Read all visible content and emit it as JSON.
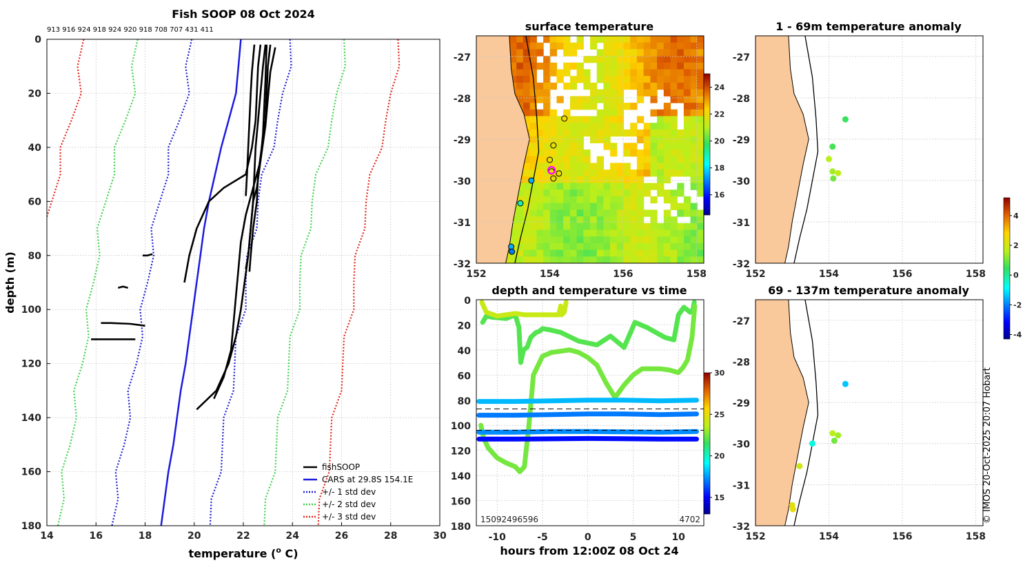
{
  "colors": {
    "land": "#f9c99b",
    "cars": "#1a1adf",
    "soop": "#000000",
    "std1": "#1d1dd1",
    "std2": "#3fd14d",
    "std3": "#e0281c",
    "marker_magenta": "#ff00ff"
  },
  "chart_data": [
    {
      "type": "line",
      "title": "Fish SOOP 08 Oct 2024",
      "profile_ids": "913 916 924 918 924 920 918 708 707 431 411",
      "xlabel": "temperature (",
      "xlabel_sup": "o",
      "xlabel_tail": " C)",
      "ylabel": "depth (m)",
      "xlim": [
        14,
        30
      ],
      "ylim": [
        0,
        180
      ],
      "xticks": [
        "14",
        "16",
        "18",
        "20",
        "22",
        "24",
        "26",
        "28",
        "30"
      ],
      "yticks": [
        "0",
        "20",
        "40",
        "60",
        "80",
        "100",
        "120",
        "140",
        "160",
        "180"
      ],
      "legend": [
        {
          "label": "fishSOOP",
          "style": "solid",
          "color": "#000000"
        },
        {
          "label": "CARS at 29.8S 154.1E",
          "style": "solid",
          "color": "#1a1adf"
        },
        {
          "label": "+/- 1 std dev",
          "style": "dotted",
          "color": "#1d1dd1"
        },
        {
          "label": "+/- 2 std dev",
          "style": "dotted",
          "color": "#3fd14d"
        },
        {
          "label": "+/- 3 std dev",
          "style": "dotted",
          "color": "#e0281c"
        }
      ],
      "cars": {
        "depth": [
          0,
          10,
          20,
          30,
          40,
          50,
          60,
          70,
          80,
          90,
          100,
          110,
          120,
          130,
          140,
          150,
          160,
          170,
          180
        ],
        "temp": [
          21.9,
          21.8,
          21.7,
          21.4,
          21.1,
          20.85,
          20.6,
          20.4,
          20.25,
          20.1,
          19.95,
          19.8,
          19.65,
          19.45,
          19.3,
          19.15,
          18.95,
          18.8,
          18.65
        ]
      },
      "std1": {
        "offset": 2.0
      },
      "std2": {
        "offset": 4.2
      },
      "std3": {
        "offset": 6.4
      },
      "soop": [
        {
          "depth": [
            2,
            10,
            20,
            30,
            40,
            50,
            55,
            60,
            70,
            80,
            90
          ],
          "temp": [
            22.7,
            22.6,
            22.55,
            22.5,
            22.35,
            22.1,
            21.2,
            20.6,
            20.1,
            19.8,
            19.6
          ]
        },
        {
          "depth": [
            2,
            10,
            20,
            30,
            40,
            50,
            60,
            70,
            80,
            85
          ],
          "temp": [
            22.9,
            22.8,
            22.7,
            22.6,
            22.5,
            22.45,
            22.4,
            22.3,
            22.2,
            22.1
          ]
        },
        {
          "depth": [
            2,
            10,
            20,
            30,
            40,
            50,
            60,
            70,
            80,
            86
          ],
          "temp": [
            23.1,
            23.0,
            22.95,
            22.9,
            22.75,
            22.6,
            22.55,
            22.4,
            22.3,
            22.25
          ]
        },
        {
          "depth": [
            3,
            12,
            22,
            32,
            45,
            55,
            65,
            75,
            85,
            95,
            105,
            115,
            125,
            133
          ],
          "temp": [
            23.3,
            23.1,
            23.0,
            22.9,
            22.7,
            22.4,
            22.1,
            21.9,
            21.8,
            21.7,
            21.6,
            21.5,
            21.2,
            20.8
          ]
        },
        {
          "depth": [
            2,
            15,
            25,
            35,
            45,
            55,
            60,
            70,
            80,
            90,
            100,
            110,
            120,
            130,
            137
          ],
          "temp": [
            22.95,
            22.9,
            22.85,
            22.8,
            22.7,
            22.55,
            22.4,
            22.3,
            22.2,
            22.05,
            21.9,
            21.7,
            21.4,
            20.9,
            20.1
          ]
        },
        {
          "depth": [
            2,
            12,
            20,
            30,
            40,
            50,
            58
          ],
          "temp": [
            22.45,
            22.35,
            22.3,
            22.25,
            22.2,
            22.15,
            22.1
          ]
        },
        {
          "depth": [
            80,
            80,
            79.5
          ],
          "temp": [
            17.9,
            18.1,
            18.3
          ]
        },
        {
          "depth": [
            92,
            91.5,
            92
          ],
          "temp": [
            16.9,
            17.1,
            17.3
          ]
        },
        {
          "depth": [
            105,
            105,
            105.3,
            106
          ],
          "temp": [
            16.2,
            16.6,
            17.4,
            18.0
          ]
        },
        {
          "depth": [
            111,
            111,
            111,
            111
          ],
          "temp": [
            15.8,
            16.4,
            17.0,
            17.6
          ]
        }
      ]
    },
    {
      "type": "heatmap",
      "title": "surface temperature",
      "xlim": [
        152,
        158.2
      ],
      "ylim": [
        -32,
        -26.5
      ],
      "xticks": [
        "152",
        "154",
        "156",
        "158"
      ],
      "yticks": [
        "-27",
        "-28",
        "-29",
        "-30",
        "-31",
        "-32"
      ],
      "colorbar": {
        "min": 14.5,
        "max": 25,
        "ticks": [
          "16",
          "18",
          "20",
          "22",
          "24"
        ]
      },
      "coast": [
        [
          152.9,
          -26.5
        ],
        [
          152.95,
          -27.3
        ],
        [
          153.05,
          -27.9
        ],
        [
          153.3,
          -28.4
        ],
        [
          153.45,
          -29.0
        ],
        [
          153.3,
          -29.6
        ],
        [
          153.15,
          -30.3
        ],
        [
          153.0,
          -31.0
        ],
        [
          152.9,
          -31.6
        ],
        [
          152.8,
          -32
        ]
      ],
      "shelf": [
        [
          153.35,
          -26.5
        ],
        [
          153.55,
          -27.5
        ],
        [
          153.65,
          -28.5
        ],
        [
          153.7,
          -29.3
        ],
        [
          153.55,
          -30.0
        ],
        [
          153.4,
          -30.7
        ],
        [
          153.2,
          -31.4
        ],
        [
          153.05,
          -32
        ]
      ],
      "markers": [
        {
          "lon": 154.4,
          "lat": -28.5,
          "val": 22
        },
        {
          "lon": 154.1,
          "lat": -29.15,
          "val": 22
        },
        {
          "lon": 154.0,
          "lat": -29.5,
          "val": 22
        },
        {
          "lon": 154.05,
          "lat": -29.78,
          "val": 22
        },
        {
          "lon": 154.25,
          "lat": -29.83,
          "val": 22
        },
        {
          "lon": 154.1,
          "lat": -29.95,
          "val": 22
        },
        {
          "lon": 153.5,
          "lat": -30.0,
          "val": 17.5
        },
        {
          "lon": 153.2,
          "lat": -30.55,
          "val": 19
        },
        {
          "lon": 152.95,
          "lat": -31.6,
          "val": 17.5
        },
        {
          "lon": 152.97,
          "lat": -31.72,
          "val": 17
        }
      ],
      "magenta": {
        "lon": 154.05,
        "lat": -29.75
      }
    },
    {
      "type": "scatter",
      "title": "depth and temperature vs time",
      "xlabel": "hours from 12:00Z 08 Oct 24",
      "xlim": [
        -12.3,
        12.8
      ],
      "ylim": [
        0,
        180
      ],
      "xticks": [
        "-10",
        "-5",
        "0",
        "5",
        "10"
      ],
      "yticks": [
        "0",
        "20",
        "40",
        "60",
        "80",
        "100",
        "120",
        "140",
        "160",
        "180"
      ],
      "colorbar": {
        "min": 13,
        "max": 30,
        "ticks": [
          "15",
          "20",
          "25",
          "30"
        ]
      },
      "hlines": [
        87,
        104
      ],
      "corner_left": "15092496596",
      "corner_right": "4702",
      "series": [
        {
          "temp": 22.0,
          "t": [
            -11.6,
            -11.2,
            -10.5,
            -9,
            -8,
            -7.6,
            -7.4,
            -7.1,
            -6.7,
            -6.3,
            -6.0,
            -5.7,
            -5.3,
            -5.0,
            -4.2,
            -3.0,
            -1.0,
            1.0,
            2.5,
            4.0,
            5.2,
            6.5,
            7.5,
            8.5,
            9.5,
            10.0,
            10.6,
            11.3,
            11.6,
            11.75
          ],
          "d": [
            18,
            13,
            14,
            15,
            12,
            22,
            50,
            40,
            38,
            30,
            28,
            26,
            25,
            23,
            24,
            26,
            33,
            36,
            29,
            38,
            18,
            22,
            26,
            30,
            32,
            12,
            6,
            10,
            8,
            2
          ]
        },
        {
          "temp": 22.5,
          "t": [
            -11.8,
            -11.5,
            -11,
            -10,
            -9,
            -8,
            -7.5,
            -7.0,
            -6.5,
            -6,
            -5,
            -4,
            -3,
            -2,
            -1,
            0,
            1,
            2,
            3,
            4,
            5,
            6,
            7,
            8,
            9,
            10,
            10.5,
            11,
            11.5,
            11.8
          ],
          "d": [
            100,
            110,
            118,
            126,
            130,
            133,
            137,
            133,
            100,
            60,
            45,
            42,
            41,
            40,
            42,
            46,
            52,
            66,
            78,
            68,
            60,
            55,
            55,
            55,
            56,
            58,
            54,
            48,
            30,
            5
          ]
        },
        {
          "temp": 24.0,
          "t": [
            -11.7,
            -11.2,
            -10,
            -9,
            -8,
            -7,
            -6,
            -5,
            -4,
            -3.2,
            -3.0,
            -2.9,
            -2.6,
            -2.4
          ],
          "d": [
            2,
            10,
            13,
            12,
            11,
            12,
            12,
            12,
            12,
            12,
            5,
            12,
            10,
            2
          ]
        },
        {
          "temp": 18.0,
          "t": [
            -12,
            -8,
            -4,
            0,
            4,
            8,
            12
          ],
          "d": [
            81,
            81,
            80.5,
            80,
            80,
            80.5,
            80
          ]
        },
        {
          "temp": 17.0,
          "t": [
            -12,
            -8,
            -4,
            0,
            4,
            8,
            12
          ],
          "d": [
            92,
            92,
            91.5,
            91,
            91,
            91.5,
            91
          ]
        },
        {
          "temp": 17.3,
          "t": [
            -12,
            -8,
            -4,
            0,
            4,
            8,
            12
          ],
          "d": [
            105.5,
            105.5,
            105,
            105,
            105.2,
            105.5,
            105
          ]
        },
        {
          "temp": 15.2,
          "t": [
            -12,
            -8,
            -4,
            0,
            4,
            8,
            12
          ],
          "d": [
            111,
            111,
            110.8,
            110.5,
            110.7,
            111,
            111
          ]
        }
      ]
    },
    {
      "type": "scatter",
      "title": "1 - 69m temperature anomaly",
      "xlim": [
        152,
        158.2
      ],
      "ylim": [
        -32,
        -26.5
      ],
      "xticks": [
        "152",
        "154",
        "156",
        "158"
      ],
      "yticks": [
        "-27",
        "-28",
        "-29",
        "-30",
        "-31",
        "-32"
      ],
      "points": [
        {
          "lon": 154.45,
          "lat": -28.52,
          "val": 0.5
        },
        {
          "lon": 154.1,
          "lat": -29.18,
          "val": 0.6
        },
        {
          "lon": 154.0,
          "lat": -29.48,
          "val": 1.6
        },
        {
          "lon": 154.1,
          "lat": -29.78,
          "val": 1.4
        },
        {
          "lon": 154.25,
          "lat": -29.82,
          "val": 1.7
        },
        {
          "lon": 154.12,
          "lat": -29.95,
          "val": 1.0
        }
      ]
    },
    {
      "type": "scatter",
      "title": "69 - 137m temperature anomaly",
      "xlim": [
        152,
        158.2
      ],
      "ylim": [
        -32,
        -26.5
      ],
      "xticks": [
        "152",
        "154",
        "156",
        "158"
      ],
      "yticks": [
        "-27",
        "-28",
        "-29",
        "-30",
        "-31",
        "-32"
      ],
      "colorbar": {
        "min": -4.3,
        "max": 5.2,
        "ticks": [
          "4",
          "2",
          "0",
          "-2",
          "-4"
        ]
      },
      "points": [
        {
          "lon": 154.45,
          "lat": -28.55,
          "val": -1.4
        },
        {
          "lon": 154.1,
          "lat": -29.75,
          "val": 1.6
        },
        {
          "lon": 154.25,
          "lat": -29.8,
          "val": 1.4
        },
        {
          "lon": 154.15,
          "lat": -29.93,
          "val": 1.0
        },
        {
          "lon": 153.55,
          "lat": -30.0,
          "val": -0.6
        },
        {
          "lon": 153.2,
          "lat": -30.55,
          "val": 2.0
        },
        {
          "lon": 153.0,
          "lat": -31.5,
          "val": 2.3
        },
        {
          "lon": 153.02,
          "lat": -31.6,
          "val": 2.4
        }
      ]
    }
  ],
  "watermark": "© IMOS 20-Oct-2025 20:07 Hobart"
}
